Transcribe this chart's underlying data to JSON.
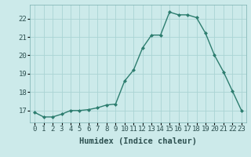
{
  "x": [
    0,
    1,
    2,
    3,
    4,
    5,
    6,
    7,
    8,
    9,
    10,
    11,
    12,
    13,
    14,
    15,
    16,
    17,
    18,
    19,
    20,
    21,
    22,
    23
  ],
  "y": [
    16.9,
    16.65,
    16.65,
    16.8,
    17.0,
    17.0,
    17.05,
    17.15,
    17.3,
    17.35,
    18.6,
    19.2,
    20.4,
    21.1,
    21.1,
    22.35,
    22.2,
    22.2,
    22.05,
    21.2,
    20.0,
    19.1,
    18.05,
    17.0
  ],
  "xlabel": "Humidex (Indice chaleur)",
  "xlim": [
    -0.5,
    23.5
  ],
  "ylim": [
    16.35,
    22.75
  ],
  "yticks": [
    17,
    18,
    19,
    20,
    21,
    22
  ],
  "xticks": [
    0,
    1,
    2,
    3,
    4,
    5,
    6,
    7,
    8,
    9,
    10,
    11,
    12,
    13,
    14,
    15,
    16,
    17,
    18,
    19,
    20,
    21,
    22,
    23
  ],
  "line_color": "#2d7d6f",
  "marker": "D",
  "marker_size": 2.0,
  "bg_color": "#cceaea",
  "grid_color": "#aad4d4",
  "xlabel_fontsize": 7.5,
  "tick_fontsize": 6.5,
  "linewidth": 1.0
}
